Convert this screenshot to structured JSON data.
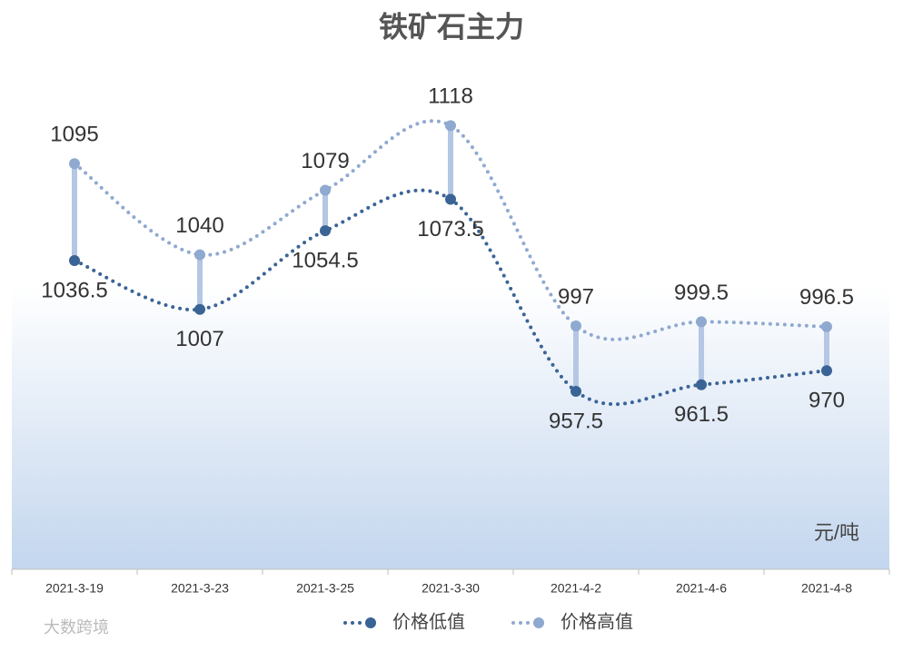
{
  "chart_data": {
    "type": "line",
    "title": "铁矿石主力",
    "unit_label": "元/吨",
    "watermark": "大数跨境",
    "categories": [
      "2021-3-19",
      "2021-3-23",
      "2021-3-25",
      "2021-3-30",
      "2021-4-2",
      "2021-4-6",
      "2021-4-8"
    ],
    "series": [
      {
        "name": "价格低值",
        "color": "#3a6496",
        "values": [
          1036.5,
          1007,
          1054.5,
          1073.5,
          957.5,
          961.5,
          970
        ]
      },
      {
        "name": "价格高值",
        "color": "#8fa9d0",
        "values": [
          1095,
          1040,
          1079,
          1118,
          997,
          999.5,
          996.5
        ]
      }
    ],
    "ylim": [
      850,
      1150
    ],
    "legend": "bottom"
  }
}
